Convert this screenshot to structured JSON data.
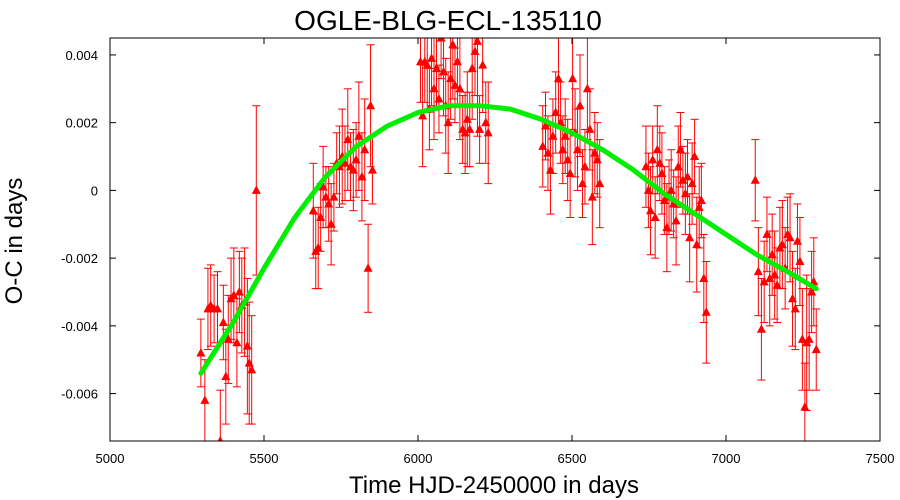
{
  "chart_data": {
    "type": "scatter",
    "title": "OGLE-BLG-ECL-135110",
    "xlabel": "Time HJD-2450000 in days",
    "ylabel": "O-C in days",
    "xlim": [
      5000,
      7500
    ],
    "ylim": [
      -0.0074,
      0.0045
    ],
    "xticks": [
      5000,
      5500,
      6000,
      6500,
      7000,
      7500
    ],
    "xtick_labels": [
      "5000",
      "5500",
      "6000",
      "6500",
      "7000",
      "7500"
    ],
    "yticks": [
      -0.006,
      -0.004,
      -0.002,
      0,
      0.002,
      0.004
    ],
    "ytick_labels": [
      "-0.006",
      "-0.004",
      "-0.002",
      "0",
      "0.002",
      "0.004"
    ],
    "grid": false,
    "colors": {
      "points": "#ff0000",
      "fit": "#00ee00",
      "axes": "#000000"
    },
    "series": [
      {
        "kind": "points-with-errorbars",
        "marker": "triangle-up",
        "x": [
          5295,
          5308,
          5318,
          5327,
          5338,
          5349,
          5358,
          5368,
          5376,
          5384,
          5393,
          5402,
          5412,
          5420,
          5428,
          5437,
          5446,
          5452,
          5460,
          5475,
          5660,
          5668,
          5676,
          5684,
          5692,
          5701,
          5710,
          5718,
          5727,
          5736,
          5745,
          5754,
          5763,
          5772,
          5781,
          5790,
          5799,
          5808,
          5818,
          5827,
          5838,
          5846,
          5852,
          6008,
          6015,
          6022,
          6030,
          6037,
          6044,
          6052,
          6060,
          6068,
          6075,
          6083,
          6090,
          6098,
          6106,
          6113,
          6120,
          6128,
          6136,
          6145,
          6153,
          6160,
          6168,
          6176,
          6185,
          6193,
          6200,
          6210,
          6220,
          6228,
          6405,
          6414,
          6422,
          6430,
          6438,
          6447,
          6456,
          6463,
          6470,
          6478,
          6486,
          6494,
          6502,
          6510,
          6518,
          6526,
          6534,
          6542,
          6550,
          6558,
          6566,
          6574,
          6582,
          6590,
          6740,
          6748,
          6755,
          6762,
          6770,
          6777,
          6785,
          6792,
          6800,
          6808,
          6815,
          6822,
          6830,
          6838,
          6845,
          6852,
          6860,
          6868,
          6875,
          6882,
          6890,
          6898,
          6905,
          6913,
          6920,
          6928,
          6936,
          7095,
          7105,
          7115,
          7124,
          7133,
          7142,
          7150,
          7158,
          7166,
          7175,
          7183,
          7192,
          7200,
          7208,
          7216,
          7225,
          7232,
          7240,
          7248,
          7256,
          7262,
          7270,
          7278,
          7285,
          7293
        ],
        "y": [
          -0.0048,
          -0.0062,
          -0.0035,
          -0.0034,
          -0.0035,
          -0.0035,
          -0.0074,
          -0.0039,
          -0.0055,
          -0.0044,
          -0.0032,
          -0.0031,
          -0.0045,
          -0.003,
          -0.0034,
          -0.0033,
          -0.0046,
          -0.0051,
          -0.0053,
          0.0,
          -0.0006,
          -0.0018,
          -0.0017,
          -0.0008,
          0.0001,
          -0.0002,
          -0.0004,
          -0.001,
          -0.0002,
          0.0008,
          0.0007,
          0.001,
          0.0008,
          0.0015,
          0.0007,
          0.0006,
          0.0009,
          0.0016,
          0.0004,
          0.0012,
          -0.0023,
          0.0025,
          0.0006,
          0.0038,
          0.0022,
          0.0038,
          0.0037,
          0.0024,
          0.0039,
          0.003,
          0.0036,
          0.0027,
          0.0045,
          0.0035,
          0.0025,
          0.002,
          0.0033,
          0.0043,
          0.0031,
          0.0038,
          0.003,
          0.0018,
          0.0017,
          0.0021,
          0.0018,
          0.0036,
          0.0041,
          0.0044,
          0.0018,
          0.0037,
          0.002,
          0.0017,
          0.0013,
          0.0019,
          0.0011,
          0.0006,
          0.0016,
          0.0023,
          0.0033,
          0.002,
          0.0012,
          0.0016,
          0.0009,
          0.0005,
          0.0033,
          0.0017,
          0.0012,
          0.0025,
          0.0002,
          0.0007,
          0.003,
          0.0018,
          -0.0002,
          0.0011,
          0.0009,
          0.0002,
          0.0007,
          0.0,
          -0.0006,
          0.0009,
          -0.0008,
          0.0012,
          0.0008,
          0.0005,
          -0.0003,
          -0.0011,
          -0.0002,
          0.0,
          -0.0004,
          -0.0009,
          0.0007,
          0.0012,
          0.0003,
          -0.0001,
          0.0004,
          -0.0014,
          0.0002,
          0.001,
          -0.0016,
          -0.0005,
          -0.0003,
          -0.0026,
          -0.0036,
          0.0003,
          -0.0024,
          -0.0041,
          -0.0027,
          -0.0013,
          -0.0026,
          -0.0019,
          -0.0025,
          -0.0028,
          -0.0017,
          -0.0016,
          -0.0023,
          -0.0013,
          -0.0014,
          -0.0032,
          -0.0035,
          -0.0015,
          -0.0021,
          -0.0044,
          -0.0064,
          -0.0045,
          -0.0044,
          -0.003,
          -0.0027,
          -0.0047
        ],
        "yerr": [
          0.001,
          0.0012,
          0.0012,
          0.0012,
          0.001,
          0.0011,
          0.0015,
          0.0011,
          0.0014,
          0.0013,
          0.0012,
          0.0014,
          0.0013,
          0.0012,
          0.0014,
          0.0016,
          0.002,
          0.0018,
          0.0016,
          0.0025,
          0.0014,
          0.0011,
          0.0012,
          0.001,
          0.0012,
          0.0009,
          0.0011,
          0.0012,
          0.001,
          0.0009,
          0.0012,
          0.0014,
          0.0011,
          0.0015,
          0.001,
          0.0012,
          0.0011,
          0.0016,
          0.0013,
          0.0015,
          0.0013,
          0.0018,
          0.001,
          0.0012,
          0.0015,
          0.0012,
          0.0014,
          0.0012,
          0.0014,
          0.0015,
          0.0012,
          0.001,
          0.0012,
          0.0013,
          0.0014,
          0.0015,
          0.0012,
          0.0016,
          0.0011,
          0.0013,
          0.0015,
          0.001,
          0.0012,
          0.0014,
          0.0011,
          0.0015,
          0.0013,
          0.0028,
          0.001,
          0.0014,
          0.0012,
          0.0015,
          0.0012,
          0.001,
          0.0011,
          0.0013,
          0.0011,
          0.0012,
          0.0014,
          0.0012,
          0.001,
          0.0011,
          0.0012,
          0.0013,
          0.0015,
          0.0013,
          0.0012,
          0.0015,
          0.001,
          0.0011,
          0.0015,
          0.0012,
          0.0014,
          0.0012,
          0.0011,
          0.0013,
          0.0012,
          0.0011,
          0.0013,
          0.001,
          0.0012,
          0.0013,
          0.0011,
          0.0012,
          0.001,
          0.0013,
          0.0011,
          0.0012,
          0.001,
          0.0013,
          0.0012,
          0.0011,
          0.001,
          0.0012,
          0.0011,
          0.0013,
          0.0012,
          0.0011,
          0.0014,
          0.0012,
          0.0011,
          0.0013,
          0.0015,
          0.0012,
          0.0013,
          0.0015,
          0.0012,
          0.0011,
          0.0014,
          0.0012,
          0.0013,
          0.0011,
          0.0012,
          0.0013,
          0.0012,
          0.0011,
          0.0013,
          0.0014,
          0.0012,
          0.0011,
          0.0013,
          0.0015,
          0.0013,
          0.002,
          0.0015,
          0.0012,
          0.0013,
          0.0012
        ]
      },
      {
        "kind": "fit-curve",
        "x": [
          5295,
          5400,
          5500,
          5600,
          5700,
          5800,
          5900,
          6000,
          6100,
          6150,
          6200,
          6300,
          6400,
          6500,
          6600,
          6700,
          6800,
          6900,
          7000,
          7100,
          7200,
          7293
        ],
        "y": [
          -0.0054,
          -0.0039,
          -0.0023,
          -0.0008,
          0.0004,
          0.0013,
          0.0019,
          0.0023,
          0.0025,
          0.0025,
          0.0025,
          0.0024,
          0.0021,
          0.0017,
          0.0012,
          0.0006,
          -0.0001,
          -0.0007,
          -0.0013,
          -0.0019,
          -0.0024,
          -0.0029
        ]
      }
    ]
  }
}
